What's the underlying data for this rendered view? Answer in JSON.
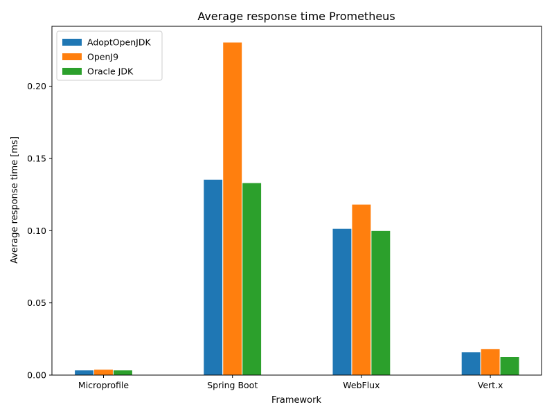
{
  "chart_data": {
    "type": "bar",
    "title": "Average response time Prometheus",
    "xlabel": "Framework",
    "ylabel": "Average response time [ms]",
    "categories": [
      "Microprofile",
      "Spring Boot",
      "WebFlux",
      "Vert.x"
    ],
    "series": [
      {
        "name": "AdoptOpenJDK",
        "color": "#1f77b4",
        "values": [
          0.0035,
          0.1355,
          0.1015,
          0.016
        ]
      },
      {
        "name": "OpenJ9",
        "color": "#ff7f0e",
        "values": [
          0.004,
          0.2305,
          0.1183,
          0.0183
        ]
      },
      {
        "name": "Oracle JDK",
        "color": "#2ca02c",
        "values": [
          0.0035,
          0.1332,
          0.1,
          0.0127
        ]
      }
    ],
    "ylim": [
      0,
      0.2415
    ],
    "yticks": [
      0.0,
      0.05,
      0.1,
      0.15,
      0.2
    ],
    "ytick_labels": [
      "0.00",
      "0.05",
      "0.10",
      "0.15",
      "0.20"
    ],
    "legend_position": "upper left",
    "grid": false
  }
}
